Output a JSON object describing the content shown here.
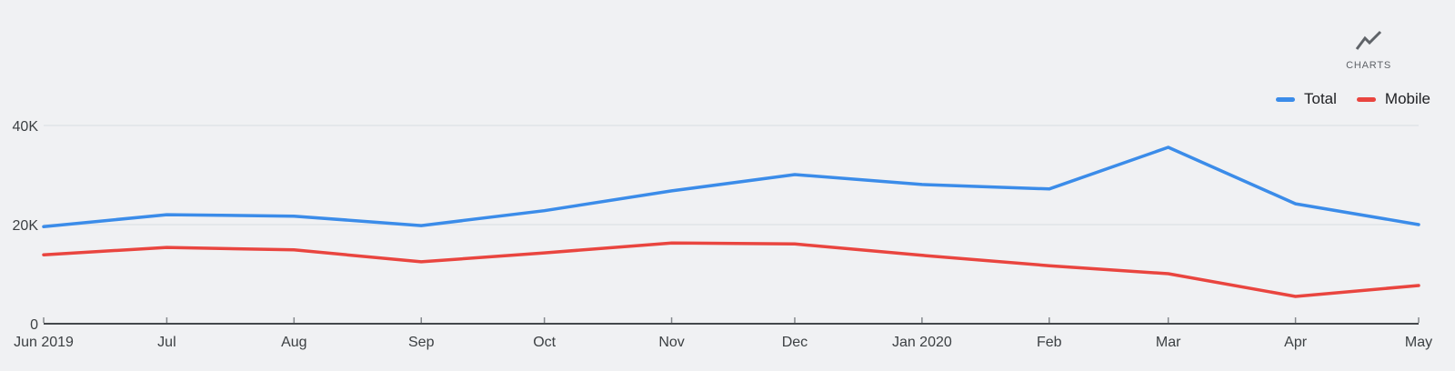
{
  "widget": {
    "label": "CHARTS"
  },
  "colors": {
    "background": "#f0f1f3",
    "grid": "#e4e7ea",
    "axis": "#44484c",
    "tick": "#85898d",
    "tick_text": "#3c4043",
    "widget_text": "#5f6368",
    "legend_text": "#202124",
    "total_line": "#3b8ce9",
    "mobile_line": "#e9453f"
  },
  "chart_data": {
    "type": "line",
    "title": "",
    "xlabel": "",
    "ylabel": "",
    "categories": [
      "Jun 2019",
      "Jul",
      "Aug",
      "Sep",
      "Oct",
      "Nov",
      "Dec",
      "Jan 2020",
      "Feb",
      "Mar",
      "Apr",
      "May"
    ],
    "x_day_offsets": [
      0,
      30,
      61,
      92,
      122,
      153,
      183,
      214,
      245,
      274,
      305,
      335
    ],
    "series": [
      {
        "name": "Total",
        "color": "#3b8ce9",
        "values": [
          19600,
          22000,
          21700,
          19800,
          22800,
          26800,
          30100,
          28100,
          27200,
          35600,
          24200,
          20000
        ]
      },
      {
        "name": "Mobile",
        "color": "#e9453f",
        "values": [
          13900,
          15400,
          14900,
          12500,
          14300,
          16300,
          16100,
          13800,
          11700,
          10100,
          5500,
          7700
        ]
      }
    ],
    "ylim": [
      0,
      40000
    ],
    "yticks": [
      {
        "value": 0,
        "label": "0"
      },
      {
        "value": 20000,
        "label": "20K"
      },
      {
        "value": 40000,
        "label": "40K"
      }
    ],
    "grid": "horizontal-light",
    "legend_position": "top-right"
  }
}
